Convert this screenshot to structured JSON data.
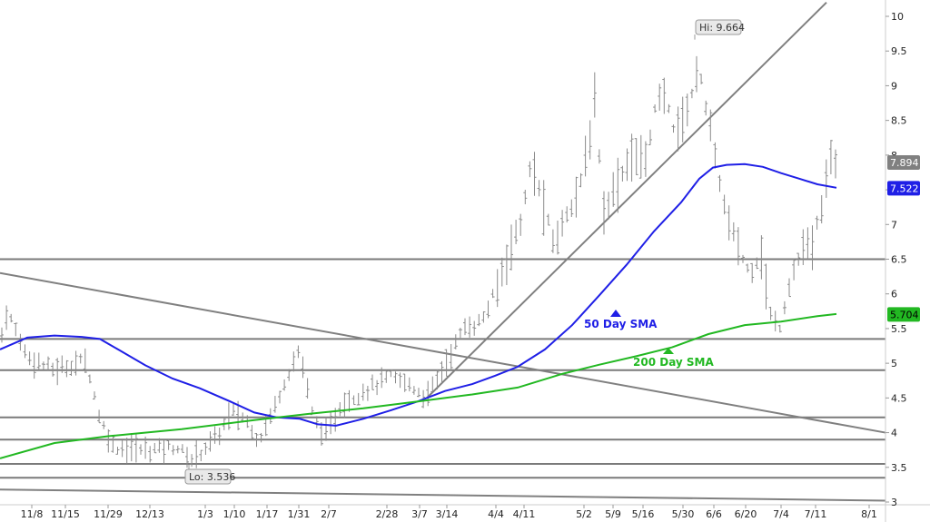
{
  "chart_data": {
    "type": "ohlc-bar",
    "y_axis": {
      "ylim": [
        3,
        10
      ],
      "ticks": [
        "3",
        "3.5",
        "4",
        "4.5",
        "5",
        "5.5",
        "6",
        "6.5",
        "7",
        "7.5",
        "8",
        "8.5",
        "9",
        "9.5",
        "10"
      ]
    },
    "x_axis": {
      "ticks": [
        "11/8",
        "11/15",
        "11/29",
        "12/13",
        "1/3",
        "1/10",
        "1/17",
        "1/31",
        "2/7",
        "2/28",
        "3/7",
        "3/14",
        "4/4",
        "4/11",
        "5/2",
        "5/9",
        "5/16",
        "5/30",
        "6/6",
        "6/20",
        "7/4",
        "7/11",
        "8/1"
      ]
    },
    "price_path": [
      [
        0,
        5.3
      ],
      [
        8,
        5.75
      ],
      [
        30,
        5.1
      ],
      [
        60,
        4.9
      ],
      [
        95,
        5.05
      ],
      [
        110,
        4.2
      ],
      [
        125,
        3.8
      ],
      [
        160,
        3.75
      ],
      [
        195,
        3.8
      ],
      [
        210,
        3.6
      ],
      [
        240,
        3.95
      ],
      [
        255,
        4.3
      ],
      [
        270,
        4.2
      ],
      [
        285,
        3.9
      ],
      [
        300,
        4.3
      ],
      [
        315,
        4.8
      ],
      [
        330,
        5.2
      ],
      [
        345,
        4.2
      ],
      [
        360,
        3.95
      ],
      [
        375,
        4.4
      ],
      [
        400,
        4.6
      ],
      [
        430,
        4.8
      ],
      [
        450,
        4.7
      ],
      [
        470,
        4.5
      ],
      [
        495,
        5.1
      ],
      [
        510,
        5.5
      ],
      [
        530,
        5.6
      ],
      [
        545,
        6.0
      ],
      [
        560,
        6.6
      ],
      [
        575,
        7.1
      ],
      [
        585,
        7.9
      ],
      [
        600,
        7.2
      ],
      [
        610,
        6.7
      ],
      [
        625,
        7.2
      ],
      [
        640,
        7.6
      ],
      [
        650,
        8.3
      ],
      [
        655,
        8.8
      ],
      [
        665,
        7.2
      ],
      [
        680,
        7.6
      ],
      [
        695,
        8.0
      ],
      [
        710,
        7.9
      ],
      [
        720,
        8.6
      ],
      [
        730,
        8.9
      ],
      [
        745,
        8.3
      ],
      [
        760,
        8.8
      ],
      [
        770,
        9.3
      ],
      [
        780,
        8.5
      ],
      [
        790,
        7.8
      ],
      [
        800,
        7.1
      ],
      [
        812,
        6.7
      ],
      [
        825,
        6.3
      ],
      [
        838,
        6.6
      ],
      [
        848,
        5.7
      ],
      [
        858,
        5.5
      ],
      [
        870,
        6.2
      ],
      [
        882,
        6.6
      ],
      [
        895,
        6.7
      ],
      [
        905,
        7.3
      ],
      [
        915,
        7.95
      ],
      [
        922,
        7.88
      ]
    ],
    "extremes": [
      {
        "x": 765,
        "value": 9.664
      },
      {
        "x": 208,
        "value": 3.536
      }
    ],
    "series": [
      {
        "name": "50 Day SMA",
        "color": "#1f1fe6",
        "last_value": 7.522,
        "x": [
          0,
          30,
          60,
          90,
          110,
          130,
          160,
          190,
          220,
          255,
          280,
          305,
          330,
          350,
          370,
          400,
          430,
          460,
          490,
          520,
          545,
          570,
          600,
          630,
          660,
          690,
          720,
          750,
          770,
          785,
          800,
          820,
          840,
          860,
          880,
          900,
          921
        ],
        "y": [
          5.2,
          5.37,
          5.4,
          5.38,
          5.35,
          5.2,
          4.97,
          4.78,
          4.64,
          4.44,
          4.29,
          4.22,
          4.2,
          4.12,
          4.1,
          4.2,
          4.32,
          4.45,
          4.6,
          4.7,
          4.82,
          4.95,
          5.2,
          5.55,
          5.98,
          6.42,
          6.9,
          7.32,
          7.66,
          7.82,
          7.86,
          7.87,
          7.83,
          7.74,
          7.66,
          7.58,
          7.53
        ]
      },
      {
        "name": "200 Day SMA",
        "color": "#22b822",
        "last_value": 5.704,
        "x": [
          0,
          60,
          120,
          200,
          280,
          340,
          400,
          460,
          520,
          570,
          620,
          660,
          700,
          740,
          780,
          820,
          860,
          900,
          921
        ],
        "y": [
          3.63,
          3.85,
          3.95,
          4.05,
          4.18,
          4.27,
          4.35,
          4.45,
          4.55,
          4.65,
          4.85,
          4.98,
          5.1,
          5.23,
          5.42,
          5.55,
          5.6,
          5.68,
          5.71
        ]
      }
    ],
    "last_price": 7.894,
    "horizontal_lines": [
      6.5,
      5.35,
      4.9,
      4.22,
      3.9,
      3.55,
      3.35
    ],
    "trendlines": [
      {
        "from": [
          0,
          6.3
        ],
        "to": [
          975,
          4.0
        ]
      },
      {
        "from": [
          470,
          4.5
        ],
        "to": [
          910,
          10.2
        ]
      },
      {
        "from": [
          0,
          3.18
        ],
        "to": [
          975,
          3.02
        ]
      }
    ],
    "annotations": {
      "hi": "Hi: 9.664",
      "lo": "Lo: 3.536",
      "sma50_label": "50 Day SMA",
      "sma200_label": "200 Day SMA",
      "price_tag": "7.894",
      "sma50_tag": "7.522",
      "sma200_tag": "5.704"
    }
  }
}
